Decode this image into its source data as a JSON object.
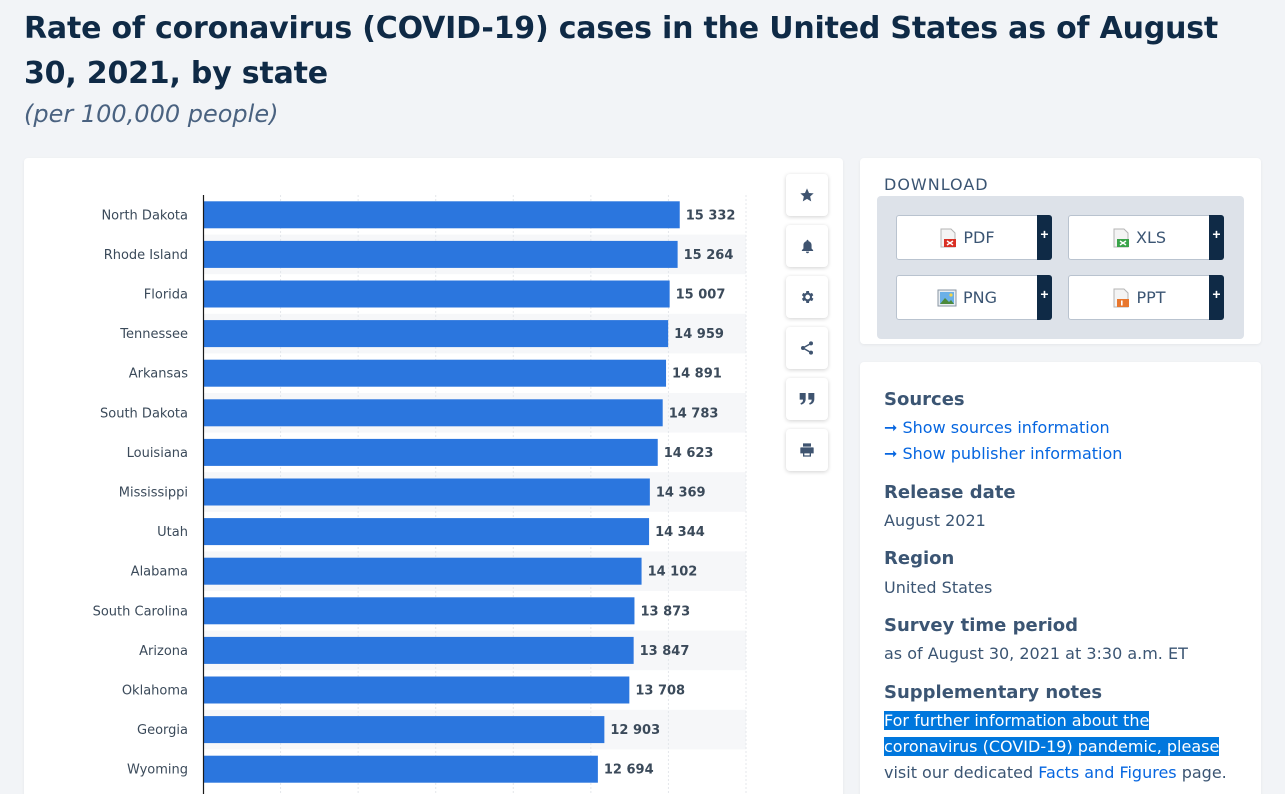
{
  "page": {
    "title": "Rate of coronavirus (COVID-19) cases in the United States as of August 30, 2021, by state",
    "subtitle": "(per 100,000 people)"
  },
  "colors": {
    "bar": "#2b76de",
    "accent": "#0666e0",
    "navy": "#0f2a46"
  },
  "toolbar": {
    "icons": [
      "star-icon",
      "bell-icon",
      "gear-icon",
      "share-icon",
      "quote-icon",
      "print-icon"
    ]
  },
  "download": {
    "heading": "DOWNLOAD",
    "buttons": [
      {
        "label": "PDF",
        "icon": "pdf-file-icon",
        "plus": "+"
      },
      {
        "label": "XLS",
        "icon": "xls-file-icon",
        "plus": "+"
      },
      {
        "label": "PNG",
        "icon": "png-file-icon",
        "plus": "+"
      },
      {
        "label": "PPT",
        "icon": "ppt-file-icon",
        "plus": "+"
      }
    ]
  },
  "info": {
    "sources_label": "Sources",
    "show_sources": "Show sources information",
    "show_publisher": "Show publisher information",
    "release_label": "Release date",
    "release_value": "August 2021",
    "region_label": "Region",
    "region_value": "United States",
    "survey_label": "Survey time period",
    "survey_value": "as of August 30, 2021 at 3:30 a.m. ET",
    "notes_label": "Supplementary notes",
    "notes_line1": "For further information about the",
    "notes_line2": "coronavirus (COVID-19) pandemic, please",
    "notes_pre": "visit our dedicated ",
    "notes_link": "Facts and Figures",
    "notes_post": " page."
  },
  "chart_data": {
    "type": "bar",
    "orientation": "horizontal",
    "categories": [
      "North Dakota",
      "Rhode Island",
      "Florida",
      "Tennessee",
      "Arkansas",
      "South Dakota",
      "Louisiana",
      "Mississippi",
      "Utah",
      "Alabama",
      "South Carolina",
      "Arizona",
      "Oklahoma",
      "Georgia",
      "Wyoming"
    ],
    "values": [
      15332,
      15264,
      15007,
      14959,
      14891,
      14783,
      14623,
      14369,
      14344,
      14102,
      13873,
      13847,
      13708,
      12903,
      12694
    ],
    "value_labels": [
      "15 332",
      "15 264",
      "15 007",
      "14 959",
      "14 891",
      "14 783",
      "14 623",
      "14 369",
      "14 344",
      "14 102",
      "13 873",
      "13 847",
      "13 708",
      "12 903",
      "12 694"
    ],
    "xlim": [
      0,
      17500
    ],
    "grid": true,
    "color": "#2b76de"
  }
}
